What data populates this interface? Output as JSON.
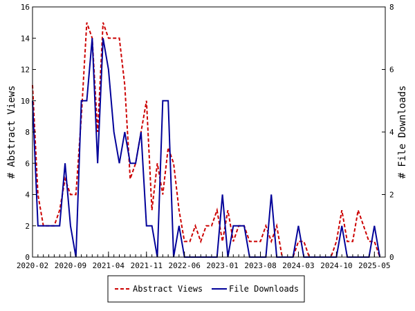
{
  "chart_data": {
    "type": "line",
    "x_tick_labels": [
      "2020-02",
      "2020-09",
      "2021-04",
      "2021-11",
      "2022-06",
      "2023-01",
      "2023-08",
      "2024-03",
      "2024-10",
      "2025-05"
    ],
    "x_tick_indices": [
      0,
      7,
      14,
      21,
      28,
      35,
      42,
      49,
      56,
      63
    ],
    "x_range": [
      0,
      65
    ],
    "left_axis": {
      "label": "# Abstract Views",
      "range": [
        0,
        16
      ],
      "ticks": [
        0,
        2,
        4,
        6,
        8,
        10,
        12,
        14,
        16
      ]
    },
    "right_axis": {
      "label": "# File Downloads",
      "range": [
        0,
        8
      ],
      "ticks": [
        0,
        2,
        4,
        6,
        8
      ]
    },
    "grid": false,
    "legend_position": "bottom",
    "series": [
      {
        "name": "Abstract Views",
        "axis": "left",
        "color": "#cc0000",
        "dash": true,
        "values": [
          11,
          4,
          2,
          2,
          2,
          3,
          5,
          4,
          4,
          9,
          15,
          14,
          8,
          15,
          14,
          14,
          14,
          11,
          5,
          6,
          8,
          10,
          3,
          6,
          4,
          7,
          6,
          3,
          1,
          1,
          2,
          1,
          2,
          2,
          3,
          1,
          3,
          1,
          2,
          2,
          1,
          1,
          1,
          2,
          1,
          2,
          0,
          0,
          0,
          1,
          1,
          0,
          0,
          0,
          0,
          0,
          1,
          3,
          1,
          1,
          3,
          2,
          1,
          1,
          0
        ]
      },
      {
        "name": "File Downloads",
        "axis": "right",
        "color": "#000099",
        "dash": false,
        "values": [
          5,
          1,
          1,
          1,
          1,
          1,
          3,
          1,
          0,
          5,
          5,
          7,
          3,
          7,
          6,
          4,
          3,
          4,
          3,
          3,
          4,
          1,
          1,
          0,
          5,
          5,
          0,
          1,
          0,
          0,
          0,
          0,
          0,
          0,
          0,
          2,
          0,
          1,
          1,
          1,
          0,
          0,
          0,
          0,
          2,
          0,
          0,
          0,
          0,
          1,
          0,
          0,
          0,
          0,
          0,
          0,
          0,
          1,
          0,
          0,
          0,
          0,
          0,
          1,
          0
        ]
      }
    ]
  }
}
